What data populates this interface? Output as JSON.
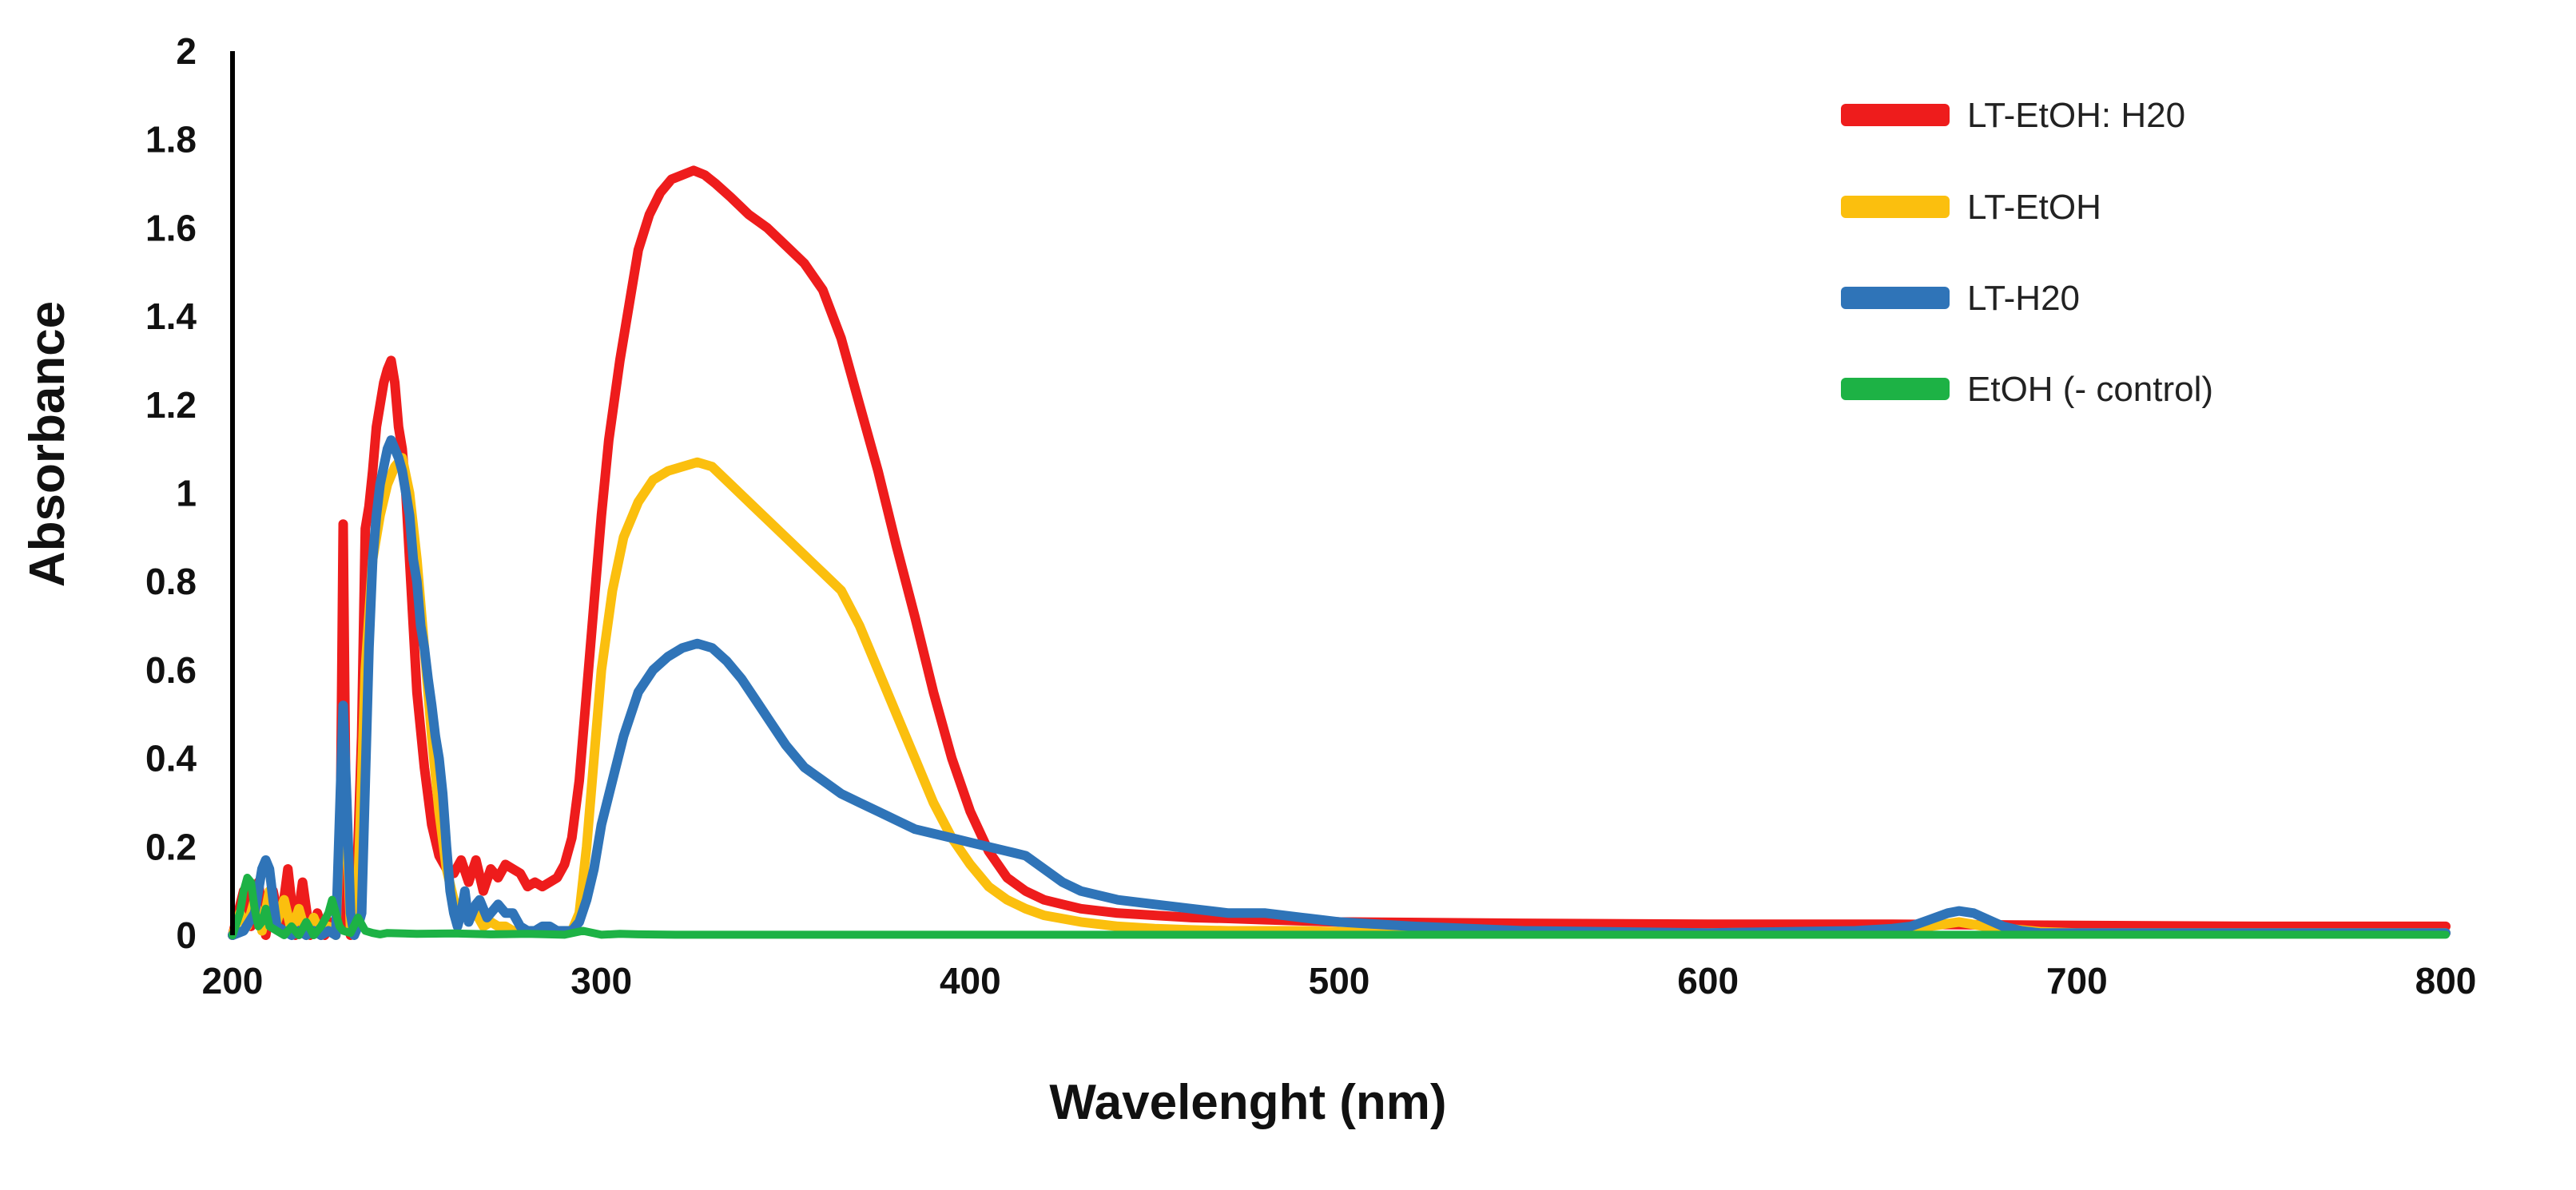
{
  "chart_data": {
    "type": "line",
    "title": "",
    "xlabel": "Wavelenght (nm)",
    "ylabel": "Absorbance",
    "xlim": [
      200,
      800
    ],
    "ylim": [
      0,
      2
    ],
    "xticks": [
      200,
      300,
      400,
      500,
      600,
      700,
      800
    ],
    "xtick_labels": [
      "200",
      "300",
      "400",
      "500",
      "600",
      "700",
      "800"
    ],
    "yticks": [
      0,
      0.2,
      0.4,
      0.6,
      0.8,
      1,
      1.2,
      1.4,
      1.6,
      1.8,
      2
    ],
    "ytick_labels": [
      "0",
      "0.2",
      "0.4",
      "0.6",
      "0.8",
      "1",
      "1.2",
      "1.4",
      "1.6",
      "1.8",
      "2"
    ],
    "grid": false,
    "legend_position": "top-right",
    "series": [
      {
        "name": "LT-EtOH: H20",
        "color": "#ee1c1c",
        "x": [
          200,
          203,
          205,
          207,
          209,
          211,
          213,
          215,
          217,
          219,
          221,
          223,
          225,
          227,
          229,
          230,
          231,
          232,
          233,
          234,
          235,
          236,
          237,
          238,
          239,
          240,
          241,
          242,
          243,
          244,
          245,
          246,
          247,
          248,
          249,
          250,
          252,
          254,
          256,
          258,
          260,
          262,
          264,
          266,
          268,
          270,
          272,
          274,
          276,
          278,
          280,
          282,
          284,
          286,
          288,
          290,
          292,
          294,
          296,
          298,
          300,
          302,
          305,
          308,
          310,
          313,
          316,
          319,
          322,
          325,
          328,
          331,
          335,
          340,
          345,
          350,
          355,
          360,
          365,
          370,
          375,
          380,
          385,
          390,
          395,
          400,
          405,
          410,
          415,
          420,
          425,
          430,
          440,
          450,
          460,
          470,
          480,
          500,
          550,
          600,
          650,
          700,
          750,
          800
        ],
        "y": [
          0,
          0.1,
          0.02,
          0.12,
          0,
          0.1,
          0.02,
          0.15,
          0,
          0.12,
          0,
          0.05,
          0,
          0.03,
          0.02,
          0.93,
          0.05,
          0,
          0.02,
          0.2,
          0.45,
          0.92,
          0.97,
          1.05,
          1.15,
          1.2,
          1.25,
          1.28,
          1.3,
          1.25,
          1.15,
          1.1,
          1.0,
          0.85,
          0.7,
          0.55,
          0.38,
          0.25,
          0.18,
          0.15,
          0.14,
          0.17,
          0.12,
          0.17,
          0.1,
          0.15,
          0.13,
          0.16,
          0.15,
          0.14,
          0.11,
          0.12,
          0.11,
          0.12,
          0.13,
          0.16,
          0.22,
          0.35,
          0.55,
          0.75,
          0.95,
          1.12,
          1.3,
          1.45,
          1.55,
          1.63,
          1.68,
          1.71,
          1.72,
          1.73,
          1.72,
          1.7,
          1.67,
          1.63,
          1.6,
          1.56,
          1.52,
          1.46,
          1.35,
          1.2,
          1.05,
          0.88,
          0.72,
          0.55,
          0.4,
          0.28,
          0.19,
          0.13,
          0.1,
          0.08,
          0.07,
          0.06,
          0.05,
          0.045,
          0.04,
          0.038,
          0.035,
          0.03,
          0.027,
          0.025,
          0.025,
          0.022,
          0.02,
          0.02
        ]
      },
      {
        "name": "LT-EtOH",
        "color": "#fbbf0e",
        "x": [
          200,
          202,
          204,
          206,
          208,
          210,
          212,
          214,
          216,
          218,
          220,
          222,
          224,
          226,
          228,
          230,
          232,
          234,
          236,
          238,
          240,
          242,
          244,
          246,
          248,
          250,
          252,
          254,
          256,
          258,
          260,
          262,
          264,
          266,
          268,
          270,
          272,
          274,
          276,
          278,
          280,
          284,
          288,
          292,
          294,
          296,
          298,
          300,
          303,
          306,
          310,
          314,
          318,
          322,
          326,
          330,
          335,
          340,
          345,
          350,
          355,
          360,
          365,
          370,
          375,
          380,
          385,
          390,
          395,
          400,
          405,
          410,
          415,
          420,
          430,
          440,
          450,
          460,
          470,
          480,
          490,
          500,
          520,
          550,
          600,
          650,
          660,
          668,
          675,
          690,
          700,
          750,
          800
        ],
        "y": [
          0,
          0.05,
          0.02,
          0.08,
          0.01,
          0.1,
          0.03,
          0.08,
          0.01,
          0.06,
          0,
          0.04,
          0,
          0.02,
          0,
          0.45,
          0.02,
          0.1,
          0.6,
          0.85,
          0.95,
          1.02,
          1.06,
          1.08,
          1.0,
          0.85,
          0.65,
          0.45,
          0.28,
          0.15,
          0.08,
          0.05,
          0.06,
          0.05,
          0.02,
          0.03,
          0.02,
          0.02,
          0.01,
          0.01,
          0.01,
          0.01,
          0.01,
          0.01,
          0.05,
          0.2,
          0.4,
          0.6,
          0.78,
          0.9,
          0.98,
          1.03,
          1.05,
          1.06,
          1.07,
          1.06,
          1.02,
          0.98,
          0.94,
          0.9,
          0.86,
          0.82,
          0.78,
          0.7,
          0.6,
          0.5,
          0.4,
          0.3,
          0.22,
          0.16,
          0.11,
          0.08,
          0.06,
          0.045,
          0.03,
          0.02,
          0.015,
          0.012,
          0.01,
          0.01,
          0.01,
          0.008,
          0.005,
          0.005,
          0.005,
          0.01,
          0.02,
          0.03,
          0.02,
          0.008,
          0.005,
          0.005,
          0.005
        ]
      },
      {
        "name": "LT-H20",
        "color": "#2f74b8",
        "x": [
          200,
          203,
          206,
          208,
          209,
          210,
          211,
          212,
          214,
          216,
          218,
          220,
          222,
          224,
          226,
          228,
          230,
          231,
          232,
          233,
          234,
          235,
          236,
          237,
          238,
          239,
          240,
          241,
          242,
          243,
          244,
          245,
          246,
          247,
          248,
          249,
          250,
          251,
          252,
          253,
          254,
          255,
          256,
          257,
          258,
          259,
          260,
          261,
          262,
          263,
          264,
          265,
          266,
          267,
          268,
          269,
          270,
          271,
          272,
          273,
          274,
          276,
          278,
          280,
          282,
          284,
          286,
          288,
          290,
          292,
          294,
          296,
          298,
          300,
          303,
          306,
          310,
          314,
          318,
          322,
          326,
          330,
          334,
          338,
          342,
          346,
          350,
          355,
          360,
          365,
          370,
          375,
          380,
          385,
          390,
          395,
          400,
          405,
          410,
          415,
          420,
          425,
          430,
          440,
          450,
          460,
          470,
          480,
          490,
          500,
          520,
          550,
          600,
          640,
          650,
          655,
          660,
          665,
          668,
          672,
          676,
          680,
          685,
          690,
          700,
          750,
          800
        ],
        "y": [
          0,
          0.01,
          0.05,
          0.15,
          0.17,
          0.15,
          0.08,
          0.02,
          0.01,
          0,
          0.01,
          0,
          0.01,
          0,
          0.01,
          0,
          0.52,
          0.3,
          0.05,
          0,
          0.02,
          0.05,
          0.35,
          0.65,
          0.85,
          0.95,
          1.02,
          1.06,
          1.1,
          1.12,
          1.1,
          1.08,
          1.05,
          1.0,
          0.95,
          0.85,
          0.8,
          0.7,
          0.65,
          0.58,
          0.52,
          0.45,
          0.4,
          0.32,
          0.2,
          0.1,
          0.05,
          0.02,
          0.05,
          0.1,
          0.03,
          0.05,
          0.07,
          0.08,
          0.06,
          0.04,
          0.05,
          0.06,
          0.07,
          0.06,
          0.05,
          0.05,
          0.02,
          0.01,
          0.01,
          0.02,
          0.02,
          0.01,
          0.01,
          0.01,
          0.03,
          0.08,
          0.15,
          0.25,
          0.35,
          0.45,
          0.55,
          0.6,
          0.63,
          0.65,
          0.66,
          0.65,
          0.62,
          0.58,
          0.53,
          0.48,
          0.43,
          0.38,
          0.35,
          0.32,
          0.3,
          0.28,
          0.26,
          0.24,
          0.23,
          0.22,
          0.21,
          0.2,
          0.19,
          0.18,
          0.15,
          0.12,
          0.1,
          0.08,
          0.07,
          0.06,
          0.05,
          0.05,
          0.04,
          0.03,
          0.02,
          0.01,
          0.005,
          0.01,
          0.015,
          0.02,
          0.035,
          0.05,
          0.055,
          0.05,
          0.035,
          0.02,
          0.01,
          0.005,
          0.005,
          0.005,
          0.005
        ]
      },
      {
        "name": "EtOH (- control)",
        "color": "#1db245",
        "x": [
          200,
          202,
          203,
          204,
          205,
          206,
          207,
          208,
          209,
          210,
          212,
          214,
          216,
          218,
          220,
          222,
          224,
          226,
          227,
          228,
          229,
          230,
          232,
          234,
          236,
          238,
          240,
          242,
          250,
          260,
          270,
          280,
          290,
          295,
          300,
          305,
          310,
          320,
          350,
          400,
          500,
          600,
          700,
          800
        ],
        "y": [
          0,
          0.05,
          0.1,
          0.13,
          0.12,
          0.06,
          0.02,
          0.03,
          0.06,
          0.02,
          0.01,
          0,
          0.02,
          0,
          0.03,
          0,
          0.02,
          0.05,
          0.08,
          0.05,
          0.02,
          0.01,
          0.005,
          0.04,
          0.01,
          0.005,
          0.002,
          0.005,
          0.003,
          0.004,
          0.002,
          0.003,
          0.001,
          0.01,
          0.001,
          0.003,
          0.002,
          0.001,
          0.001,
          0.001,
          0.001,
          0.001,
          0.001,
          0.001
        ]
      }
    ]
  }
}
